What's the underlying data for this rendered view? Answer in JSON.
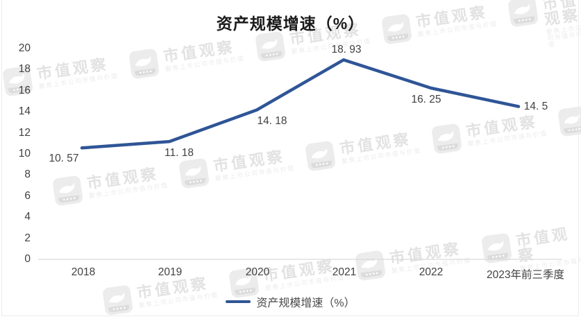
{
  "frame": {
    "border_color": "#ececec",
    "background": "#ffffff"
  },
  "chart": {
    "title": "资产规模增速（%）",
    "legend_label": "资产规模增速（%）"
  },
  "chart_data": {
    "type": "line",
    "title": "资产规模增速（%）",
    "categories": [
      "2018",
      "2019",
      "2020",
      "2021",
      "2022",
      "2023年前三季度"
    ],
    "series": [
      {
        "name": "资产规模增速（%）",
        "values": [
          10.57,
          11.18,
          14.18,
          18.93,
          16.25,
          14.5
        ]
      }
    ],
    "point_labels": [
      "10. 57",
      "11. 18",
      "14. 18",
      "18. 93",
      "16. 25",
      "14. 5"
    ],
    "yticks": [
      0,
      2,
      4,
      6,
      8,
      10,
      12,
      14,
      16,
      18,
      20
    ],
    "ylim": [
      0,
      20
    ],
    "xlabel": "",
    "ylabel": "",
    "grid": false,
    "legend_position": "bottom",
    "line_color": "#2f5597",
    "label_color": "#404040",
    "axis_line_color": "#d9d9d9",
    "title_color": "#1a1a1a"
  },
  "watermark": {
    "brand": "市值观察",
    "tagline": "聚焦上市公司市值与价值",
    "brand_color": "#e2e2e2",
    "tagline_color": "#ececec",
    "logo_color": "#ececec"
  }
}
